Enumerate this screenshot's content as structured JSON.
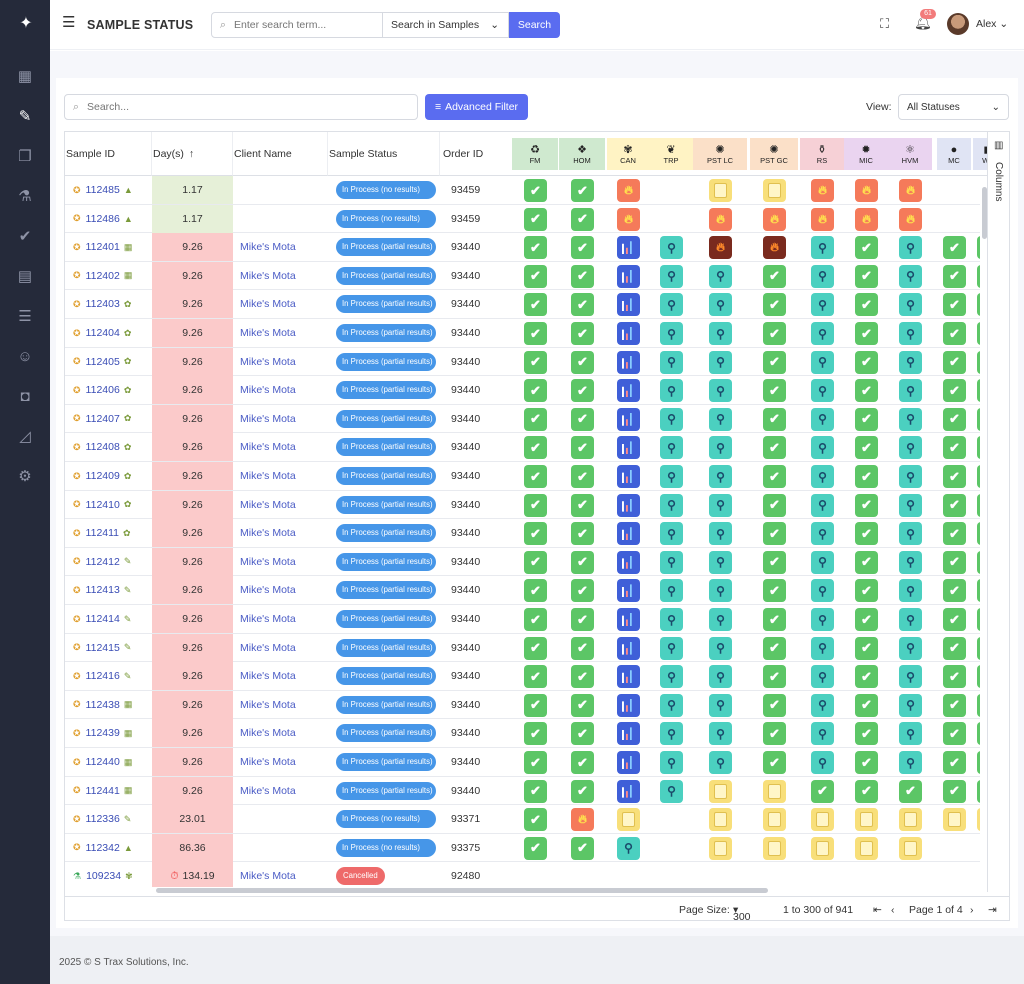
{
  "header": {
    "app_title": "SAMPLE STATUS",
    "search_placeholder": "Enter search term...",
    "scope": "Search in Samples",
    "search_button": "Search",
    "notifications": "61",
    "user": "Alex"
  },
  "toolbar": {
    "search_placeholder": "Search...",
    "advanced_filter": "Advanced Filter",
    "view_label": "View:",
    "view_value": "All Statuses"
  },
  "columns": {
    "sample_id": "Sample ID",
    "days": "Day(s)",
    "client": "Client Name",
    "status": "Sample Status",
    "order": "Order ID",
    "side_panel": "Columns"
  },
  "analytes": [
    {
      "code": "FM",
      "color": "#cfe9cf",
      "icon": "recycle-icon",
      "sym": "♻"
    },
    {
      "code": "HOM",
      "color": "#cfe9cf",
      "icon": "diamond-icon",
      "sym": "❖"
    },
    {
      "code": "CAN",
      "color": "#fff3c4",
      "icon": "leaf-icon",
      "sym": "✾"
    },
    {
      "code": "TRP",
      "color": "#fff3c4",
      "icon": "mushroom-icon",
      "sym": "❦"
    },
    {
      "code": "PST LC",
      "color": "#fbe0c8",
      "icon": "bug-icon",
      "sym": "✺"
    },
    {
      "code": "PST GC",
      "color": "#fbe0c8",
      "icon": "bug-icon",
      "sym": "✺"
    },
    {
      "code": "RS",
      "color": "#f6d0d6",
      "icon": "flask-icon",
      "sym": "⚱"
    },
    {
      "code": "MIC",
      "color": "#ead4f0",
      "icon": "microbe-icon",
      "sym": "✹"
    },
    {
      "code": "HVM",
      "color": "#ead4f0",
      "icon": "atom-icon",
      "sym": "⚛"
    },
    {
      "code": "MC",
      "color": "#e0e4f4",
      "icon": "drop-icon",
      "sym": "●"
    },
    {
      "code": "WA",
      "color": "#e0e4f4",
      "icon": "water-icon",
      "sym": "◼"
    }
  ],
  "rows": [
    {
      "id": "112485",
      "icon2": "▲",
      "days": "1.17",
      "dayColor": "#e6f0d8",
      "client": "",
      "status": "In Process (no results)",
      "cancel": false,
      "order": "93459",
      "cells": [
        "ok",
        "ok",
        "fire",
        "",
        "doc",
        "doc",
        "fire",
        "fire",
        "fire",
        "",
        ""
      ]
    },
    {
      "id": "112486",
      "icon2": "▲",
      "days": "1.17",
      "dayColor": "#e6f0d8",
      "client": "",
      "status": "In Process (no results)",
      "cancel": false,
      "order": "93459",
      "cells": [
        "ok",
        "ok",
        "fire",
        "",
        "fire",
        "fire",
        "fire",
        "fire",
        "fire",
        "",
        ""
      ]
    },
    {
      "id": "112401",
      "icon2": "▦",
      "days": "9.26",
      "dayColor": "#fbcaca",
      "client": "Mike's Mota",
      "status": "In Process (partial results)",
      "cancel": false,
      "order": "93440",
      "cells": [
        "ok",
        "ok",
        "bars",
        "mag",
        "fireDark",
        "fireDark",
        "mag",
        "ok",
        "mag",
        "ok",
        "ok"
      ]
    },
    {
      "id": "112402",
      "icon2": "▦",
      "days": "9.26",
      "dayColor": "#fbcaca",
      "client": "Mike's Mota",
      "status": "In Process (partial results)",
      "cancel": false,
      "order": "93440",
      "cells": [
        "ok",
        "ok",
        "bars",
        "mag",
        "mag",
        "ok",
        "mag",
        "ok",
        "mag",
        "ok",
        "ok"
      ]
    },
    {
      "id": "112403",
      "icon2": "✿",
      "days": "9.26",
      "dayColor": "#fbcaca",
      "client": "Mike's Mota",
      "status": "In Process (partial results)",
      "cancel": false,
      "order": "93440",
      "cells": [
        "ok",
        "ok",
        "bars",
        "mag",
        "mag",
        "ok",
        "mag",
        "ok",
        "mag",
        "ok",
        "ok"
      ]
    },
    {
      "id": "112404",
      "icon2": "✿",
      "days": "9.26",
      "dayColor": "#fbcaca",
      "client": "Mike's Mota",
      "status": "In Process (partial results)",
      "cancel": false,
      "order": "93440",
      "cells": [
        "ok",
        "ok",
        "bars",
        "mag",
        "mag",
        "ok",
        "mag",
        "ok",
        "mag",
        "ok",
        "ok"
      ]
    },
    {
      "id": "112405",
      "icon2": "✿",
      "days": "9.26",
      "dayColor": "#fbcaca",
      "client": "Mike's Mota",
      "status": "In Process (partial results)",
      "cancel": false,
      "order": "93440",
      "cells": [
        "ok",
        "ok",
        "bars",
        "mag",
        "mag",
        "ok",
        "mag",
        "ok",
        "mag",
        "ok",
        "ok"
      ]
    },
    {
      "id": "112406",
      "icon2": "✿",
      "days": "9.26",
      "dayColor": "#fbcaca",
      "client": "Mike's Mota",
      "status": "In Process (partial results)",
      "cancel": false,
      "order": "93440",
      "cells": [
        "ok",
        "ok",
        "bars",
        "mag",
        "mag",
        "ok",
        "mag",
        "ok",
        "mag",
        "ok",
        "ok"
      ]
    },
    {
      "id": "112407",
      "icon2": "✿",
      "days": "9.26",
      "dayColor": "#fbcaca",
      "client": "Mike's Mota",
      "status": "In Process (partial results)",
      "cancel": false,
      "order": "93440",
      "cells": [
        "ok",
        "ok",
        "bars",
        "mag",
        "mag",
        "ok",
        "mag",
        "ok",
        "mag",
        "ok",
        "ok"
      ]
    },
    {
      "id": "112408",
      "icon2": "✿",
      "days": "9.26",
      "dayColor": "#fbcaca",
      "client": "Mike's Mota",
      "status": "In Process (partial results)",
      "cancel": false,
      "order": "93440",
      "cells": [
        "ok",
        "ok",
        "bars",
        "mag",
        "mag",
        "ok",
        "mag",
        "ok",
        "mag",
        "ok",
        "ok"
      ]
    },
    {
      "id": "112409",
      "icon2": "✿",
      "days": "9.26",
      "dayColor": "#fbcaca",
      "client": "Mike's Mota",
      "status": "In Process (partial results)",
      "cancel": false,
      "order": "93440",
      "cells": [
        "ok",
        "ok",
        "bars",
        "mag",
        "mag",
        "ok",
        "mag",
        "ok",
        "mag",
        "ok",
        "ok"
      ]
    },
    {
      "id": "112410",
      "icon2": "✿",
      "days": "9.26",
      "dayColor": "#fbcaca",
      "client": "Mike's Mota",
      "status": "In Process (partial results)",
      "cancel": false,
      "order": "93440",
      "cells": [
        "ok",
        "ok",
        "bars",
        "mag",
        "mag",
        "ok",
        "mag",
        "ok",
        "mag",
        "ok",
        "ok"
      ]
    },
    {
      "id": "112411",
      "icon2": "✿",
      "days": "9.26",
      "dayColor": "#fbcaca",
      "client": "Mike's Mota",
      "status": "In Process (partial results)",
      "cancel": false,
      "order": "93440",
      "cells": [
        "ok",
        "ok",
        "bars",
        "mag",
        "mag",
        "ok",
        "mag",
        "ok",
        "mag",
        "ok",
        "ok"
      ]
    },
    {
      "id": "112412",
      "icon2": "✎",
      "days": "9.26",
      "dayColor": "#fbcaca",
      "client": "Mike's Mota",
      "status": "In Process (partial results)",
      "cancel": false,
      "order": "93440",
      "cells": [
        "ok",
        "ok",
        "bars",
        "mag",
        "mag",
        "ok",
        "mag",
        "ok",
        "mag",
        "ok",
        "ok"
      ]
    },
    {
      "id": "112413",
      "icon2": "✎",
      "days": "9.26",
      "dayColor": "#fbcaca",
      "client": "Mike's Mota",
      "status": "In Process (partial results)",
      "cancel": false,
      "order": "93440",
      "cells": [
        "ok",
        "ok",
        "bars",
        "mag",
        "mag",
        "ok",
        "mag",
        "ok",
        "mag",
        "ok",
        "ok"
      ]
    },
    {
      "id": "112414",
      "icon2": "✎",
      "days": "9.26",
      "dayColor": "#fbcaca",
      "client": "Mike's Mota",
      "status": "In Process (partial results)",
      "cancel": false,
      "order": "93440",
      "cells": [
        "ok",
        "ok",
        "bars",
        "mag",
        "mag",
        "ok",
        "mag",
        "ok",
        "mag",
        "ok",
        "ok"
      ]
    },
    {
      "id": "112415",
      "icon2": "✎",
      "days": "9.26",
      "dayColor": "#fbcaca",
      "client": "Mike's Mota",
      "status": "In Process (partial results)",
      "cancel": false,
      "order": "93440",
      "cells": [
        "ok",
        "ok",
        "bars",
        "mag",
        "mag",
        "ok",
        "mag",
        "ok",
        "mag",
        "ok",
        "ok"
      ]
    },
    {
      "id": "112416",
      "icon2": "✎",
      "days": "9.26",
      "dayColor": "#fbcaca",
      "client": "Mike's Mota",
      "status": "In Process (partial results)",
      "cancel": false,
      "order": "93440",
      "cells": [
        "ok",
        "ok",
        "bars",
        "mag",
        "mag",
        "ok",
        "mag",
        "ok",
        "mag",
        "ok",
        "ok"
      ]
    },
    {
      "id": "112438",
      "icon2": "▦",
      "days": "9.26",
      "dayColor": "#fbcaca",
      "client": "Mike's Mota",
      "status": "In Process (partial results)",
      "cancel": false,
      "order": "93440",
      "cells": [
        "ok",
        "ok",
        "bars",
        "mag",
        "mag",
        "ok",
        "mag",
        "ok",
        "mag",
        "ok",
        "ok"
      ]
    },
    {
      "id": "112439",
      "icon2": "▦",
      "days": "9.26",
      "dayColor": "#fbcaca",
      "client": "Mike's Mota",
      "status": "In Process (partial results)",
      "cancel": false,
      "order": "93440",
      "cells": [
        "ok",
        "ok",
        "bars",
        "mag",
        "mag",
        "ok",
        "mag",
        "ok",
        "mag",
        "ok",
        "ok"
      ]
    },
    {
      "id": "112440",
      "icon2": "▦",
      "days": "9.26",
      "dayColor": "#fbcaca",
      "client": "Mike's Mota",
      "status": "In Process (partial results)",
      "cancel": false,
      "order": "93440",
      "cells": [
        "ok",
        "ok",
        "bars",
        "mag",
        "mag",
        "ok",
        "mag",
        "ok",
        "mag",
        "ok",
        "ok"
      ]
    },
    {
      "id": "112441",
      "icon2": "▦",
      "days": "9.26",
      "dayColor": "#fbcaca",
      "client": "Mike's Mota",
      "status": "In Process (partial results)",
      "cancel": false,
      "order": "93440",
      "cells": [
        "ok",
        "ok",
        "bars",
        "mag",
        "doc",
        "doc",
        "ok",
        "ok",
        "ok",
        "ok",
        "ok"
      ]
    },
    {
      "id": "112336",
      "icon2": "✎",
      "days": "23.01",
      "dayColor": "#fbcaca",
      "client": "",
      "status": "In Process (no results)",
      "cancel": false,
      "order": "93371",
      "cells": [
        "ok",
        "fire",
        "doc",
        "",
        "doc",
        "doc",
        "doc",
        "doc",
        "doc",
        "doc",
        "doc"
      ]
    },
    {
      "id": "112342",
      "icon2": "▲",
      "days": "86.36",
      "dayColor": "#fbcaca",
      "client": "",
      "status": "In Process (no results)",
      "cancel": false,
      "order": "93375",
      "cells": [
        "ok",
        "ok",
        "mag",
        "",
        "doc",
        "doc",
        "doc",
        "doc",
        "doc",
        "",
        ""
      ]
    },
    {
      "id": "109234",
      "icon2": "✾",
      "days": "134.19",
      "dayColor": "#fbcaca",
      "client": "Mike's Mota",
      "status": "Cancelled",
      "cancel": true,
      "order": "92480",
      "cells": [
        "",
        "",
        "",
        "",
        "",
        "",
        "",
        "",
        "",
        "",
        ""
      ]
    }
  ],
  "pager": {
    "page_size_label": "Page Size:",
    "page_size": "300",
    "range": "1 to 300 of 941",
    "page_text": "Page 1 of 4"
  },
  "footer": {
    "text": "2025 © S Trax Solutions, Inc."
  }
}
